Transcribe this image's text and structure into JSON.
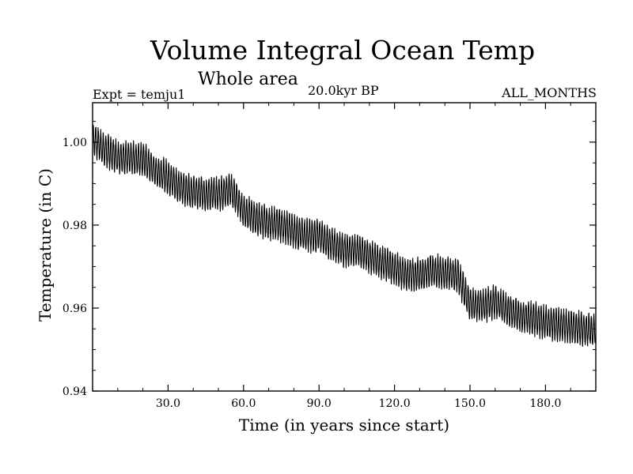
{
  "chart_data": {
    "type": "line",
    "title": "Volume Integral Ocean Temp",
    "subtitle": "Whole area",
    "experiment_label": "Expt = temju1",
    "period_label": "20.0kyr BP",
    "months_label": "ALL_MONTHS",
    "xlabel": "Time (in years since start)",
    "ylabel": "Temperature (in C)",
    "xlim": [
      0,
      200
    ],
    "ylim": [
      0.94,
      1.0095
    ],
    "xticks": [
      30,
      60,
      90,
      120,
      150,
      180
    ],
    "xtick_labels": [
      "30.0",
      "60.0",
      "90.0",
      "120.0",
      "150.0",
      "180.0"
    ],
    "yticks": [
      0.94,
      0.96,
      0.98,
      1.0
    ],
    "ytick_labels": [
      "0.94",
      "0.96",
      "0.98",
      "1.00"
    ],
    "series": [
      {
        "name": "temju1",
        "description": "annual-cycle oscillation; centre line below, amplitude ~0.004",
        "centerline_x": [
          0,
          5,
          10,
          15,
          20,
          25,
          30,
          35,
          40,
          45,
          50,
          55,
          60,
          65,
          70,
          75,
          80,
          85,
          90,
          95,
          100,
          105,
          110,
          115,
          120,
          125,
          130,
          135,
          140,
          145,
          150,
          155,
          160,
          165,
          170,
          175,
          180,
          185,
          190,
          195,
          200
        ],
        "centerline_y": [
          1.001,
          0.998,
          0.9965,
          0.996,
          0.996,
          0.993,
          0.9915,
          0.989,
          0.988,
          0.9875,
          0.9875,
          0.9885,
          0.9835,
          0.9815,
          0.9805,
          0.98,
          0.9785,
          0.9775,
          0.9775,
          0.9755,
          0.974,
          0.974,
          0.9725,
          0.971,
          0.9695,
          0.968,
          0.968,
          0.969,
          0.9685,
          0.968,
          0.961,
          0.9605,
          0.9615,
          0.9595,
          0.958,
          0.9575,
          0.9565,
          0.956,
          0.9555,
          0.955,
          0.9545
        ],
        "oscillation_amplitude": 0.004,
        "cycles_per_year": 1
      }
    ]
  }
}
